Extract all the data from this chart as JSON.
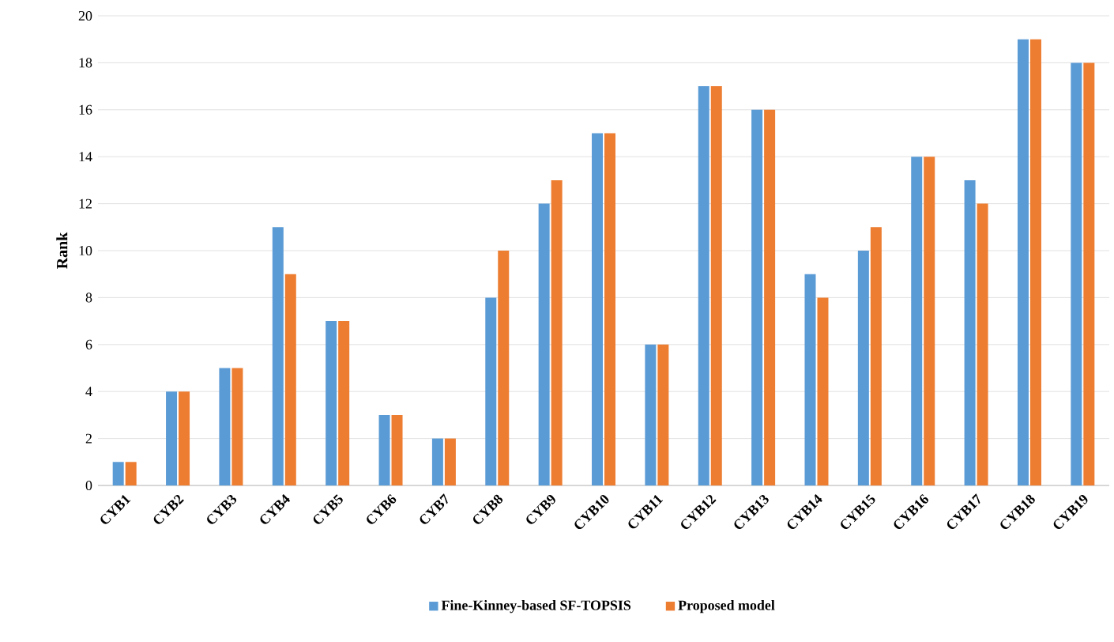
{
  "chart_data": {
    "type": "bar",
    "ylabel": "Rank",
    "categories": [
      "CYB1",
      "CYB2",
      "CYB3",
      "CYB4",
      "CYB5",
      "CYB6",
      "CYB7",
      "CYB8",
      "CYB9",
      "CYB10",
      "CYB11",
      "CYB12",
      "CYB13",
      "CYB14",
      "CYB15",
      "CYB16",
      "CYB17",
      "CYB18",
      "CYB19"
    ],
    "series": [
      {
        "name": "Fine-Kinney-based SF-TOPSIS",
        "color": "#5b9bd5",
        "values": [
          1,
          4,
          5,
          11,
          7,
          3,
          2,
          8,
          12,
          15,
          6,
          17,
          16,
          9,
          10,
          14,
          13,
          19,
          18
        ]
      },
      {
        "name": "Proposed model",
        "color": "#ed7d31",
        "values": [
          1,
          4,
          5,
          9,
          7,
          3,
          2,
          10,
          13,
          15,
          6,
          17,
          16,
          8,
          11,
          14,
          12,
          19,
          18
        ]
      }
    ],
    "ylim": [
      0,
      20
    ],
    "yticks": [
      0,
      2,
      4,
      6,
      8,
      10,
      12,
      14,
      16,
      18,
      20
    ],
    "grid": "y",
    "legend": "bottom"
  }
}
